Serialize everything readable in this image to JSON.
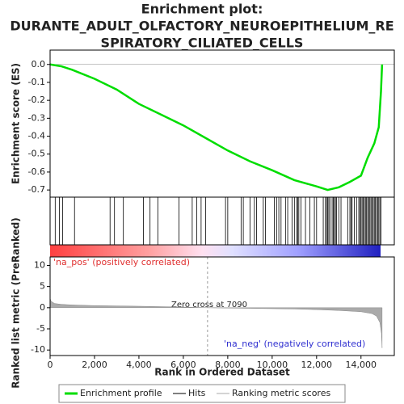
{
  "chart_data": {
    "type": "enrichment",
    "title": [
      "Enrichment plot:",
      "DURANTE_ADULT_OLFACTORY_NEUROEPITHELIUM_RE",
      "SPIRATORY_CILIATED_CELLS"
    ],
    "ylabel": "Enrichment score (ES)",
    "ylabel2": "Ranked list metric (PreRanked)",
    "xlabel": "Rank in Ordered Dataset",
    "xlim": [
      0,
      15500
    ],
    "xticks": [
      0,
      {
        "value": 2000,
        "label": "2,000"
      },
      {
        "value": 4000,
        "label": "4,000"
      },
      {
        "value": 6000,
        "label": "6,000"
      },
      {
        "value": 8000,
        "label": "8,000"
      },
      {
        "value": 10000,
        "label": "10,000"
      },
      {
        "value": 12000,
        "label": "12,000"
      },
      {
        "value": 14000,
        "label": "14,000"
      }
    ],
    "ylim": [
      -0.74,
      0.08
    ],
    "yticks": [
      {
        "value": 0,
        "label": "0.0"
      },
      -0.1,
      -0.2,
      -0.3,
      -0.4,
      -0.5,
      -0.6,
      -0.7
    ],
    "y2lim": [
      -11.3,
      12
    ],
    "y2ticks": [
      10,
      5,
      0,
      -5,
      -10
    ],
    "es": {
      "name": "Enrichment profile",
      "color": "#00dd00",
      "x": [
        0,
        500,
        1000,
        2000,
        3000,
        4000,
        5000,
        6000,
        7000,
        8000,
        9000,
        10000,
        11000,
        12000,
        12500,
        13000,
        13500,
        14000,
        14300,
        14600,
        14800,
        14900,
        14950
      ],
      "values": [
        0,
        -0.01,
        -0.03,
        -0.08,
        -0.14,
        -0.22,
        -0.28,
        -0.34,
        -0.41,
        -0.48,
        -0.54,
        -0.59,
        -0.645,
        -0.68,
        -0.7,
        -0.685,
        -0.655,
        -0.62,
        -0.52,
        -0.44,
        -0.35,
        -0.15,
        0
      ]
    },
    "hits": {
      "name": "Hits",
      "color": "#000000",
      "x": [
        230,
        420,
        560,
        1100,
        2700,
        2900,
        3300,
        4200,
        4500,
        4850,
        5800,
        6400,
        6600,
        6800,
        7000,
        7900,
        8000,
        8600,
        8700,
        9000,
        9200,
        9300,
        9600,
        9700,
        10100,
        10200,
        10300,
        10400,
        10600,
        10700,
        10900,
        11000,
        11100,
        11150,
        11200,
        11300,
        11500,
        11700,
        11900,
        12000,
        12300,
        12400,
        12450,
        12500,
        12550,
        12600,
        12700,
        12750,
        12800,
        12850,
        12900,
        13000,
        13100,
        13400,
        13500,
        13550,
        13600,
        13700,
        13800,
        13900,
        13950,
        14000,
        14050,
        14100,
        14150,
        14200,
        14250,
        14300,
        14350,
        14400,
        14450,
        14500,
        14550,
        14600,
        14650,
        14700,
        14750,
        14800,
        14850,
        14900
      ]
    },
    "metric": {
      "name": "Ranking metric scores",
      "color": "#aaaaaa",
      "x": [
        0,
        50,
        200,
        500,
        1000,
        2000,
        4000,
        6000,
        7090,
        9000,
        11000,
        12000,
        13000,
        14000,
        14500,
        14700,
        14850,
        14920,
        14950
      ],
      "values": [
        2.2,
        1.5,
        1.0,
        0.8,
        0.65,
        0.5,
        0.35,
        0.15,
        0,
        -0.15,
        -0.3,
        -0.45,
        -0.65,
        -0.95,
        -1.4,
        -2.0,
        -3.5,
        -6,
        -9.5
      ]
    },
    "zero_cross": 7090,
    "annotations": [
      "'na_pos' (positively correlated)",
      "Zero cross at 7090",
      "'na_neg' (negatively correlated)"
    ]
  }
}
